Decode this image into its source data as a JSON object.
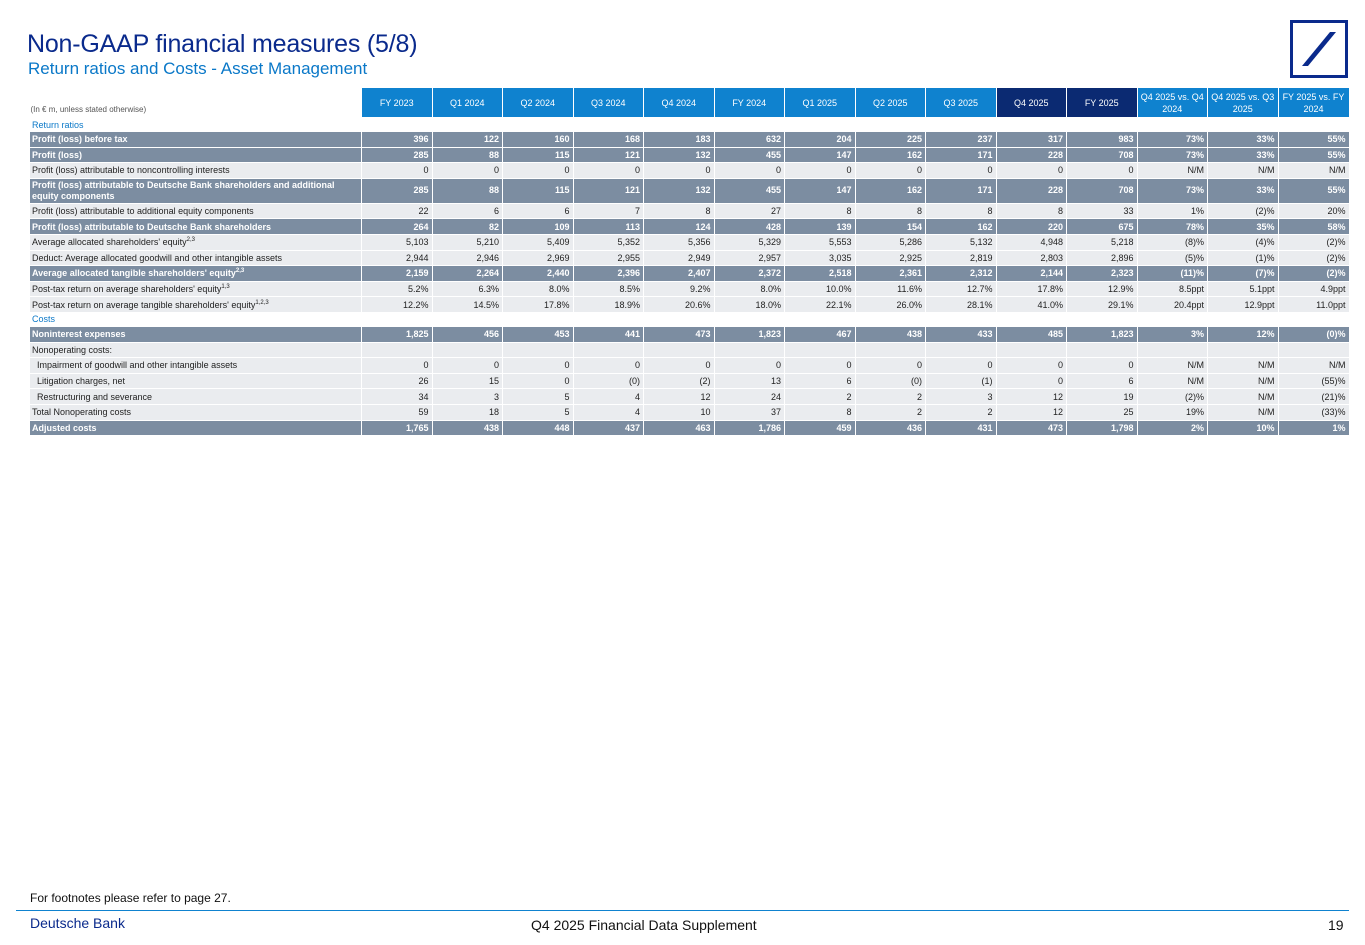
{
  "header": {
    "title": "Non-GAAP financial measures (5/8)",
    "subtitle": "Return ratios and Costs - Asset Management"
  },
  "logo": {
    "icon": "deutsche-bank-logo",
    "color": "#0a2a8c"
  },
  "table": {
    "unit_note": "(In € m, unless stated otherwise)",
    "columns": [
      "FY 2023",
      "Q1 2024",
      "Q2 2024",
      "Q3 2024",
      "Q4 2024",
      "FY 2024",
      "Q1 2025",
      "Q2 2025",
      "Q3 2025",
      "Q4 2025",
      "FY 2025",
      "Q4 2025 vs. Q4 2024",
      "Q4 2025 vs. Q3 2025",
      "FY 2025 vs. FY 2024"
    ],
    "highlight_columns": [
      "Q4 2025",
      "FY 2025"
    ],
    "rows": [
      {
        "type": "section",
        "label": "Return ratios"
      },
      {
        "type": "bold",
        "label": "Profit (loss) before tax",
        "values": [
          "396",
          "122",
          "160",
          "168",
          "183",
          "632",
          "204",
          "225",
          "237",
          "317",
          "983",
          "73%",
          "33%",
          "55%"
        ]
      },
      {
        "type": "bold",
        "label": "Profit (loss)",
        "values": [
          "285",
          "88",
          "115",
          "121",
          "132",
          "455",
          "147",
          "162",
          "171",
          "228",
          "708",
          "73%",
          "33%",
          "55%"
        ]
      },
      {
        "type": "normal",
        "label": "Profit (loss) attributable to noncontrolling interests",
        "values": [
          "0",
          "0",
          "0",
          "0",
          "0",
          "0",
          "0",
          "0",
          "0",
          "0",
          "0",
          "N/M",
          "N/M",
          "N/M"
        ]
      },
      {
        "type": "bold",
        "tall": true,
        "label": "Profit (loss) attributable to Deutsche Bank shareholders and additional equity components",
        "values": [
          "285",
          "88",
          "115",
          "121",
          "132",
          "455",
          "147",
          "162",
          "171",
          "228",
          "708",
          "73%",
          "33%",
          "55%"
        ]
      },
      {
        "type": "normal",
        "label": "Profit (loss) attributable to additional equity components",
        "values": [
          "22",
          "6",
          "6",
          "7",
          "8",
          "27",
          "8",
          "8",
          "8",
          "8",
          "33",
          "1%",
          "(2)%",
          "20%"
        ]
      },
      {
        "type": "bold",
        "label": "Profit (loss) attributable to Deutsche Bank shareholders",
        "values": [
          "264",
          "82",
          "109",
          "113",
          "124",
          "428",
          "139",
          "154",
          "162",
          "220",
          "675",
          "78%",
          "35%",
          "58%"
        ]
      },
      {
        "type": "normal",
        "label": "Average allocated shareholders' equity",
        "sup": "2,3",
        "values": [
          "5,103",
          "5,210",
          "5,409",
          "5,352",
          "5,356",
          "5,329",
          "5,553",
          "5,286",
          "5,132",
          "4,948",
          "5,218",
          "(8)%",
          "(4)%",
          "(2)%"
        ]
      },
      {
        "type": "normal",
        "label": "Deduct: Average allocated goodwill and other intangible assets",
        "values": [
          "2,944",
          "2,946",
          "2,969",
          "2,955",
          "2,949",
          "2,957",
          "3,035",
          "2,925",
          "2,819",
          "2,803",
          "2,896",
          "(5)%",
          "(1)%",
          "(2)%"
        ]
      },
      {
        "type": "bold",
        "label": "Average allocated tangible shareholders' equity",
        "sup": "2,3",
        "values": [
          "2,159",
          "2,264",
          "2,440",
          "2,396",
          "2,407",
          "2,372",
          "2,518",
          "2,361",
          "2,312",
          "2,144",
          "2,323",
          "(11)%",
          "(7)%",
          "(2)%"
        ]
      },
      {
        "type": "normal",
        "label": "Post-tax return on average shareholders' equity",
        "sup": "1,3",
        "values": [
          "5.2%",
          "6.3%",
          "8.0%",
          "8.5%",
          "9.2%",
          "8.0%",
          "10.0%",
          "11.6%",
          "12.7%",
          "17.8%",
          "12.9%",
          "8.5ppt",
          "5.1ppt",
          "4.9ppt"
        ]
      },
      {
        "type": "normal",
        "label": "Post-tax return on average tangible shareholders' equity",
        "sup": "1,2,3",
        "values": [
          "12.2%",
          "14.5%",
          "17.8%",
          "18.9%",
          "20.6%",
          "18.0%",
          "22.1%",
          "26.0%",
          "28.1%",
          "41.0%",
          "29.1%",
          "20.4ppt",
          "12.9ppt",
          "11.0ppt"
        ]
      },
      {
        "type": "section",
        "label": "Costs"
      },
      {
        "type": "bold",
        "label": "Noninterest expenses",
        "values": [
          "1,825",
          "456",
          "453",
          "441",
          "473",
          "1,823",
          "467",
          "438",
          "433",
          "485",
          "1,823",
          "3%",
          "12%",
          "(0)%"
        ]
      },
      {
        "type": "normal",
        "label": "Nonoperating costs:",
        "values": [
          "",
          "",
          "",
          "",
          "",
          "",
          "",
          "",
          "",
          "",
          "",
          "",
          "",
          ""
        ]
      },
      {
        "type": "normal",
        "indent": true,
        "label": "Impairment of goodwill and other intangible assets",
        "values": [
          "0",
          "0",
          "0",
          "0",
          "0",
          "0",
          "0",
          "0",
          "0",
          "0",
          "0",
          "N/M",
          "N/M",
          "N/M"
        ]
      },
      {
        "type": "normal",
        "indent": true,
        "label": "Litigation charges, net",
        "values": [
          "26",
          "15",
          "0",
          "(0)",
          "(2)",
          "13",
          "6",
          "(0)",
          "(1)",
          "0",
          "6",
          "N/M",
          "N/M",
          "(55)%"
        ]
      },
      {
        "type": "normal",
        "indent": true,
        "label": "Restructuring and severance",
        "values": [
          "34",
          "3",
          "5",
          "4",
          "12",
          "24",
          "2",
          "2",
          "3",
          "12",
          "19",
          "(2)%",
          "N/M",
          "(21)%"
        ]
      },
      {
        "type": "normal",
        "label": "Total Nonoperating costs",
        "values": [
          "59",
          "18",
          "5",
          "4",
          "10",
          "37",
          "8",
          "2",
          "2",
          "12",
          "25",
          "19%",
          "N/M",
          "(33)%"
        ]
      },
      {
        "type": "bold",
        "label": "Adjusted costs",
        "values": [
          "1,765",
          "438",
          "448",
          "437",
          "463",
          "1,786",
          "459",
          "436",
          "431",
          "473",
          "1,798",
          "2%",
          "10%",
          "1%"
        ]
      }
    ]
  },
  "footer": {
    "footnote": "For footnotes please refer to page 27.",
    "brand": "Deutsche Bank",
    "document_title": "Q4 2025 Financial Data Supplement",
    "page_number": "19"
  },
  "colors": {
    "header_blue": "#0f82cf",
    "header_dark": "#0b2a72",
    "bold_row": "#7c8da1",
    "normal_row": "#eaecef",
    "title": "#0a2a8c",
    "subtitle": "#0a78c8"
  }
}
